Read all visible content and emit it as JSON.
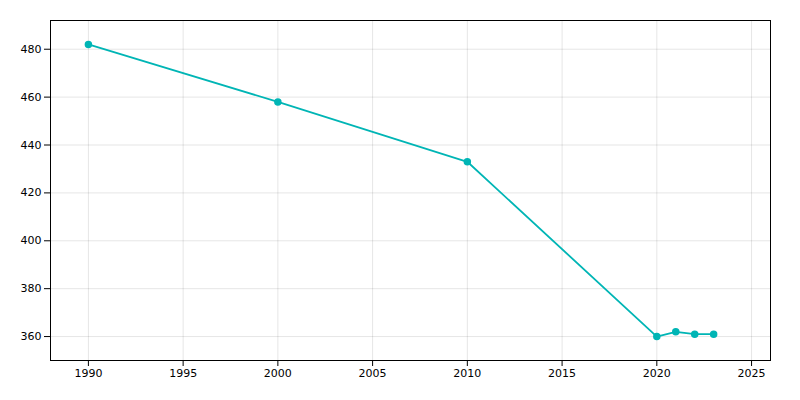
{
  "chart_data": {
    "type": "line",
    "x": [
      1990,
      2000,
      2010,
      2020,
      2021,
      2022,
      2023
    ],
    "values": [
      482,
      458,
      433,
      360,
      362,
      361,
      361
    ],
    "color": "#00b5b5",
    "marker": "circle",
    "xlim": [
      1988,
      2026
    ],
    "ylim": [
      350,
      492
    ],
    "xticks": [
      1990,
      1995,
      2000,
      2005,
      2010,
      2015,
      2020,
      2025
    ],
    "yticks": [
      360,
      380,
      400,
      420,
      440,
      460,
      480
    ],
    "grid": true
  }
}
